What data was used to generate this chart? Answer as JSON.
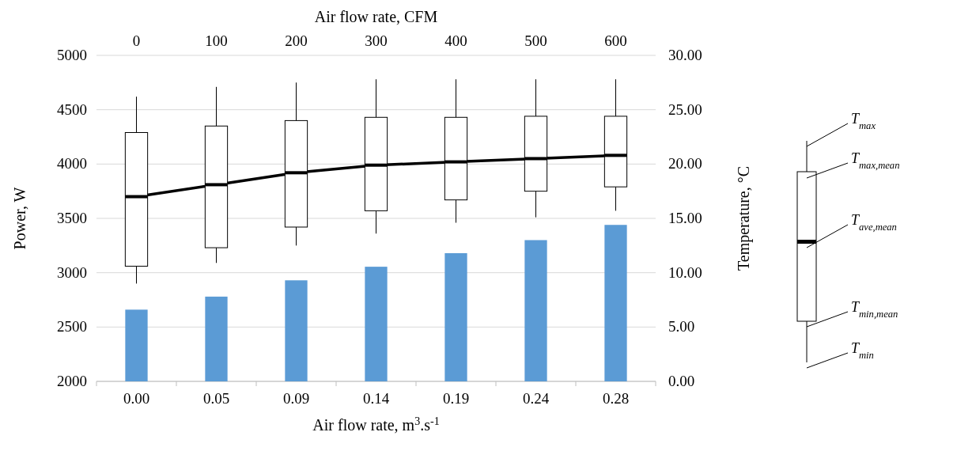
{
  "chart_data": {
    "type": "bar",
    "xlabel": "Air flow rate, m$^{3}$.s$^{-1}$",
    "x2label": "Air flow rate, CFM",
    "ylabel": "Power, W",
    "y2label": "Temperature, °C",
    "categories": [
      "0.00",
      "0.05",
      "0.09",
      "0.14",
      "0.19",
      "0.24",
      "0.28"
    ],
    "ylim": [
      2000,
      5000
    ],
    "yticks": [
      2000,
      2500,
      3000,
      3500,
      4000,
      4500,
      5000
    ],
    "y2lim": [
      0,
      30
    ],
    "y2ticks": [
      {
        "value": 0,
        "label": "0.00"
      },
      {
        "value": 5,
        "label": "5.00"
      },
      {
        "value": 10,
        "label": "10.00"
      },
      {
        "value": 15,
        "label": "15.00"
      },
      {
        "value": 20,
        "label": "20.00"
      },
      {
        "value": 25,
        "label": "25.00"
      },
      {
        "value": 30,
        "label": "30.00"
      }
    ],
    "x2lim": [
      -50,
      650
    ],
    "x2ticks": [
      0,
      100,
      200,
      300,
      400,
      500,
      600
    ],
    "grid": "y",
    "series": [
      {
        "color": "#5b9bd5",
        "values": [
          2660,
          2780,
          2930,
          3055,
          3180,
          3300,
          3440
        ]
      },
      {
        "type": "box",
        "axis": "y2",
        "color": "#000000",
        "boxes": [
          {
            "low": 9.0,
            "q1": 10.6,
            "median": 17.0,
            "q3": 22.9,
            "high": 26.2
          },
          {
            "low": 10.9,
            "q1": 12.3,
            "median": 18.1,
            "q3": 23.5,
            "high": 27.1
          },
          {
            "low": 12.5,
            "q1": 14.2,
            "median": 19.2,
            "q3": 24.0,
            "high": 27.5
          },
          {
            "low": 13.6,
            "q1": 15.7,
            "median": 19.9,
            "q3": 24.3,
            "high": 27.8
          },
          {
            "low": 14.6,
            "q1": 16.7,
            "median": 20.2,
            "q3": 24.3,
            "high": 27.8
          },
          {
            "low": 15.1,
            "q1": 17.5,
            "median": 20.5,
            "q3": 24.4,
            "high": 27.8
          },
          {
            "low": 15.7,
            "q1": 17.9,
            "median": 20.8,
            "q3": 24.4,
            "high": 27.8
          }
        ]
      },
      {
        "type": "line",
        "axis": "y2",
        "color": "#000000",
        "values": [
          17.0,
          18.1,
          19.2,
          19.9,
          20.2,
          20.5,
          20.8
        ]
      }
    ],
    "annotations": [
      "T$_{max}$",
      "T$_{max,mean}$",
      "T$_{ave,mean}$",
      "T$_{min,mean}$",
      "T$_{min}$"
    ]
  }
}
